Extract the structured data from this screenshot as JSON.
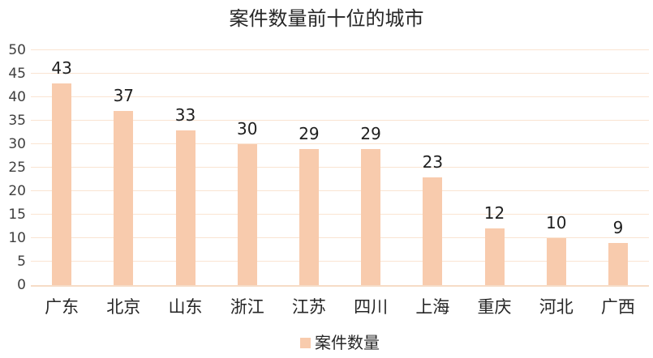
{
  "title": "案件数量前十位的城市",
  "colors": {
    "bar": "#f8cbad",
    "gridline": "#fae4d2",
    "axis_line": "#f6dcc6",
    "title_text": "#262626",
    "tick_text": "#3f3f3f"
  },
  "chart_data": {
    "type": "bar",
    "title": "案件数量前十位的城市",
    "categories": [
      "广东",
      "北京",
      "山东",
      "浙江",
      "江苏",
      "四川",
      "上海",
      "重庆",
      "河北",
      "广西"
    ],
    "values": [
      43,
      37,
      33,
      30,
      29,
      29,
      23,
      12,
      10,
      9
    ],
    "series_name": "案件数量",
    "xlabel": "",
    "ylabel": "",
    "ylim": [
      0,
      50
    ],
    "ytick_step": 5,
    "grid": true,
    "data_labels": true,
    "legend_position": "bottom"
  },
  "legend": {
    "label": "案件数量"
  }
}
